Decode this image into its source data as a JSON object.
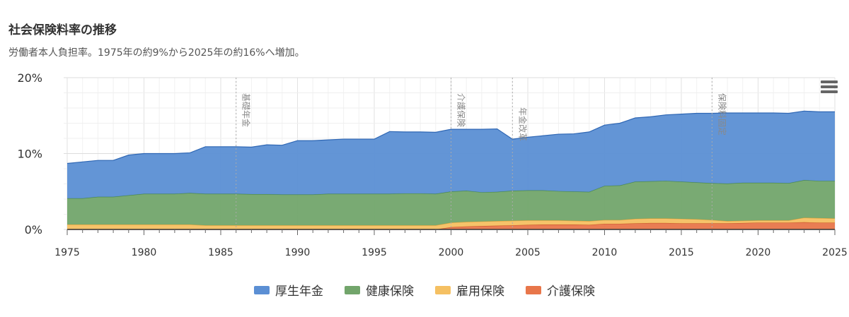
{
  "header": {
    "title": "社会保険料率の推移",
    "subtitle": "労働者本人負担率。1975年の約9%から2025年の約16%へ増加。"
  },
  "colors": {
    "pension": "#5b8fd4",
    "health": "#72a56b",
    "employment": "#f5c062",
    "care": "#e8764a",
    "grid": "#e6e6e6",
    "annotation": "#999999"
  },
  "menu": {
    "icon": "hamburger-menu-icon"
  },
  "chart_data": {
    "type": "area",
    "stacked": true,
    "x": [
      1975,
      1976,
      1977,
      1978,
      1979,
      1980,
      1981,
      1982,
      1983,
      1984,
      1985,
      1986,
      1987,
      1988,
      1989,
      1990,
      1991,
      1992,
      1993,
      1994,
      1995,
      1996,
      1997,
      1998,
      1999,
      2000,
      2001,
      2002,
      2003,
      2004,
      2005,
      2006,
      2007,
      2008,
      2009,
      2010,
      2011,
      2012,
      2013,
      2014,
      2015,
      2016,
      2017,
      2018,
      2019,
      2020,
      2021,
      2022,
      2023,
      2024,
      2025
    ],
    "xticks": [
      "1975",
      "1980",
      "1985",
      "1990",
      "1995",
      "2000",
      "2005",
      "2010",
      "2015",
      "2020",
      "2025"
    ],
    "yticks": [
      "0%",
      "10%",
      "20%"
    ],
    "ylim": [
      0,
      20
    ],
    "grid": true,
    "legend_position": "bottom",
    "series": [
      {
        "name": "介護保険",
        "color": "#e8764a",
        "values": [
          0,
          0,
          0,
          0,
          0,
          0,
          0,
          0,
          0,
          0,
          0,
          0,
          0,
          0,
          0,
          0,
          0,
          0,
          0,
          0,
          0,
          0,
          0,
          0,
          0,
          0.3,
          0.4,
          0.45,
          0.5,
          0.55,
          0.6,
          0.65,
          0.65,
          0.65,
          0.6,
          0.75,
          0.75,
          0.8,
          0.85,
          0.85,
          0.8,
          0.8,
          0.8,
          0.8,
          0.85,
          0.9,
          0.9,
          0.9,
          0.95,
          0.9,
          0.9
        ]
      },
      {
        "name": "雇用保険",
        "color": "#f5c062",
        "values": [
          0.65,
          0.65,
          0.65,
          0.65,
          0.65,
          0.65,
          0.65,
          0.65,
          0.65,
          0.55,
          0.55,
          0.55,
          0.55,
          0.55,
          0.55,
          0.55,
          0.55,
          0.55,
          0.55,
          0.55,
          0.55,
          0.55,
          0.55,
          0.55,
          0.55,
          0.6,
          0.6,
          0.6,
          0.6,
          0.6,
          0.6,
          0.55,
          0.55,
          0.5,
          0.5,
          0.5,
          0.5,
          0.6,
          0.6,
          0.6,
          0.6,
          0.55,
          0.45,
          0.3,
          0.3,
          0.3,
          0.3,
          0.3,
          0.6,
          0.6,
          0.55
        ]
      },
      {
        "name": "健康保険",
        "color": "#72a56b",
        "values": [
          3.45,
          3.45,
          3.65,
          3.65,
          3.85,
          4.05,
          4.05,
          4.05,
          4.15,
          4.15,
          4.15,
          4.15,
          4.1,
          4.1,
          4.05,
          4.05,
          4.05,
          4.15,
          4.15,
          4.15,
          4.15,
          4.15,
          4.2,
          4.2,
          4.15,
          4.1,
          4.1,
          3.85,
          3.85,
          3.95,
          3.95,
          3.95,
          3.85,
          3.85,
          3.85,
          4.5,
          4.55,
          4.9,
          4.9,
          4.95,
          4.9,
          4.85,
          4.85,
          4.95,
          5.0,
          4.95,
          4.95,
          4.9,
          4.95,
          4.9,
          4.95
        ]
      },
      {
        "name": "厚生年金",
        "color": "#5b8fd4",
        "values": [
          4.6,
          4.8,
          4.8,
          4.8,
          5.3,
          5.3,
          5.3,
          5.3,
          5.3,
          6.2,
          6.2,
          6.2,
          6.2,
          6.5,
          6.5,
          7.1,
          7.1,
          7.1,
          7.2,
          7.2,
          7.2,
          8.2,
          8.1,
          8.1,
          8.1,
          8.2,
          8.1,
          8.3,
          8.3,
          6.8,
          7.0,
          7.2,
          7.5,
          7.6,
          7.9,
          8.0,
          8.2,
          8.4,
          8.5,
          8.7,
          8.9,
          9.1,
          9.2,
          9.3,
          9.2,
          9.2,
          9.2,
          9.2,
          9.1,
          9.1,
          9.1
        ]
      }
    ],
    "plotlines": [
      {
        "x": 1986,
        "label": "基礎年金"
      },
      {
        "x": 2000,
        "label": "介護保険"
      },
      {
        "x": 2004,
        "label": "年金改革"
      },
      {
        "x": 2017,
        "label": "保険料固定"
      }
    ]
  },
  "legend": {
    "items": [
      {
        "label": "厚生年金",
        "color": "#5b8fd4"
      },
      {
        "label": "健康保険",
        "color": "#72a56b"
      },
      {
        "label": "雇用保険",
        "color": "#f5c062"
      },
      {
        "label": "介護保険",
        "color": "#e8764a"
      }
    ]
  }
}
